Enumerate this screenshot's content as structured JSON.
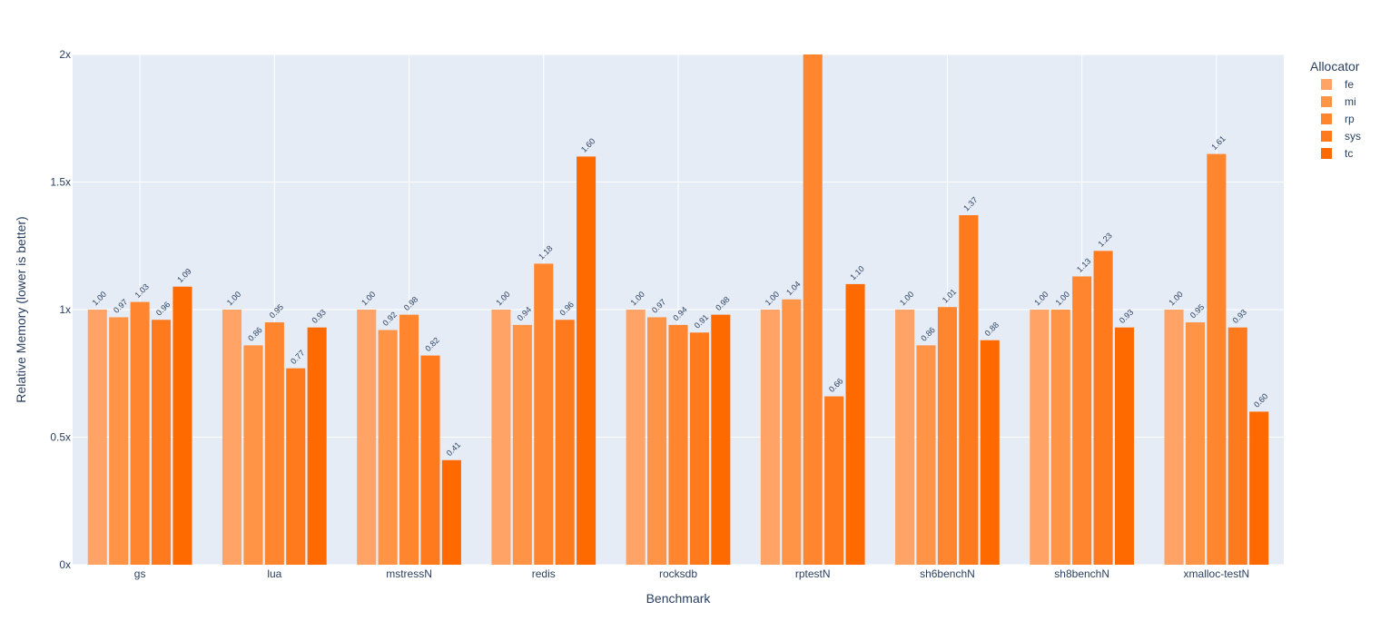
{
  "chart_data": {
    "type": "bar",
    "title": "",
    "xlabel": "Benchmark",
    "ylabel": "Relative Memory (lower is better)",
    "ylim": [
      0,
      2
    ],
    "yticks": [
      {
        "value": 0,
        "label": "0x"
      },
      {
        "value": 0.5,
        "label": "0.5x"
      },
      {
        "value": 1,
        "label": "1x"
      },
      {
        "value": 1.5,
        "label": "1.5x"
      },
      {
        "value": 2,
        "label": "2x"
      }
    ],
    "grid": true,
    "legend": {
      "title": "Allocator",
      "placement": "top-right"
    },
    "categories": [
      "gs",
      "lua",
      "mstressN",
      "redis",
      "rocksdb",
      "rptestN",
      "sh6benchN",
      "sh8benchN",
      "xmalloc-testN"
    ],
    "series": [
      {
        "name": "fe",
        "color": "#ffa366",
        "values": [
          1.0,
          1.0,
          1.0,
          1.0,
          1.0,
          1.0,
          1.0,
          1.0,
          1.0
        ],
        "labels": [
          "1.00",
          "1.00",
          "1.00",
          "1.00",
          "1.00",
          "1.00",
          "1.00",
          "1.00",
          "1.00"
        ]
      },
      {
        "name": "mi",
        "color": "#ff9447",
        "values": [
          0.97,
          0.86,
          0.92,
          0.94,
          0.97,
          1.04,
          0.86,
          1.0,
          0.95
        ],
        "labels": [
          "0.97",
          "0.86",
          "0.92",
          "0.94",
          "0.97",
          "1.04",
          "0.86",
          "1.00",
          "0.95"
        ]
      },
      {
        "name": "rp",
        "color": "#ff862e",
        "values": [
          1.03,
          0.95,
          0.98,
          1.18,
          0.94,
          2.0,
          1.01,
          1.13,
          1.61
        ],
        "labels": [
          "1.03",
          "0.95",
          "0.98",
          "1.18",
          "0.94",
          "",
          "1.01",
          "1.13",
          "1.61"
        ]
      },
      {
        "name": "sys",
        "color": "#ff7a1c",
        "values": [
          0.96,
          0.77,
          0.82,
          0.96,
          0.91,
          0.66,
          1.37,
          1.23,
          0.93
        ],
        "labels": [
          "0.96",
          "0.77",
          "0.82",
          "0.96",
          "0.91",
          "0.66",
          "1.37",
          "1.23",
          "0.93"
        ]
      },
      {
        "name": "tc",
        "color": "#ff6a00",
        "values": [
          1.09,
          0.93,
          0.41,
          1.6,
          0.98,
          1.1,
          0.88,
          0.93,
          0.6
        ],
        "labels": [
          "1.09",
          "0.93",
          "0.41",
          "1.60",
          "0.98",
          "1.10",
          "0.88",
          "0.93",
          "0.60"
        ]
      }
    ],
    "colors": {
      "plot_bg": "#e5ecf6",
      "grid": "#ffffff",
      "text": "#2a3f5f"
    }
  }
}
